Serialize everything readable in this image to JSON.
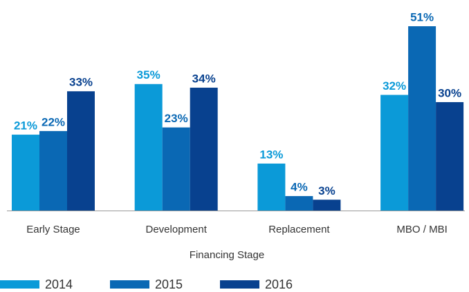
{
  "chart_data": {
    "type": "bar",
    "categories": [
      "Early Stage",
      "Development",
      "Replacement",
      "MBO / MBI"
    ],
    "x_label": "Financing Stage",
    "series": [
      {
        "name": "2014",
        "color": "#0b9ad8",
        "values": [
          21,
          35,
          13,
          32
        ],
        "value_labels": [
          "21%",
          "35%",
          "13%",
          "32%"
        ]
      },
      {
        "name": "2015",
        "color": "#0a68b4",
        "values": [
          22,
          23,
          4,
          51
        ],
        "value_labels": [
          "22%",
          "23%",
          "4%",
          "51%"
        ]
      },
      {
        "name": "2016",
        "color": "#08418f",
        "values": [
          33,
          34,
          3,
          30
        ],
        "value_labels": [
          "33%",
          "34%",
          "3%",
          "30%"
        ]
      }
    ]
  }
}
